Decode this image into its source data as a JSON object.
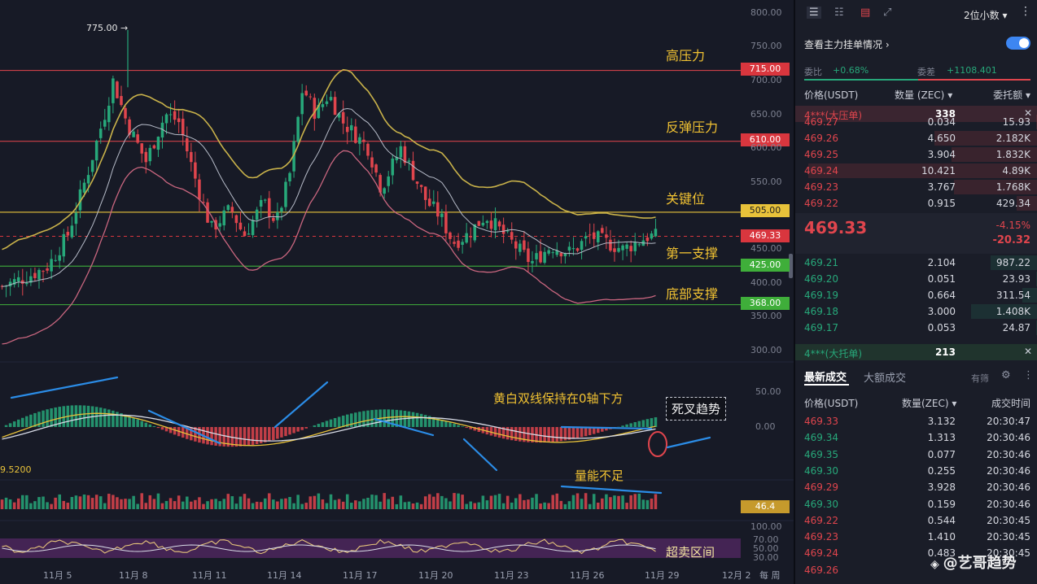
{
  "chart_data": {
    "type": "candlestick",
    "y_axis_ticks": [
      "800.00",
      "750.00",
      "700.00",
      "650.00",
      "600.00",
      "550.00",
      "450.00",
      "400.00",
      "350.00",
      "300.00"
    ],
    "y_range": [
      300,
      810
    ],
    "x_axis_ticks": [
      "11月 5",
      "11月 8",
      "11月 11",
      "11月 14",
      "11月 17",
      "11月 20",
      "11月 23",
      "11月 26",
      "11月 29",
      "12月 2"
    ],
    "x_axis_extra": "每 周",
    "high_marker": "775.00",
    "price_lines": [
      {
        "label": "高压力",
        "value": 715,
        "tag": "715.00",
        "color": "#e0454d"
      },
      {
        "label": "反弹压力",
        "value": 610,
        "tag": "610.00",
        "color": "#e0454d"
      },
      {
        "label": "关键位",
        "value": 505,
        "tag": "505.00",
        "color": "#e8c23a"
      },
      {
        "label": "第一支撑",
        "value": 425,
        "tag": "425.00",
        "color": "#3fae3a"
      },
      {
        "label": "底部支撑",
        "value": 368,
        "tag": "368.00",
        "color": "#3fae3a"
      }
    ],
    "current_price_tag": "469.33",
    "close_path": [
      [
        0,
        395
      ],
      [
        4,
        410
      ],
      [
        7,
        425
      ],
      [
        10,
        470
      ],
      [
        13,
        560
      ],
      [
        16,
        660
      ],
      [
        17,
        700
      ],
      [
        19,
        640
      ],
      [
        22,
        580
      ],
      [
        25,
        650
      ],
      [
        27,
        640
      ],
      [
        30,
        540
      ],
      [
        32,
        480
      ],
      [
        35,
        510
      ],
      [
        37,
        470
      ],
      [
        40,
        520
      ],
      [
        42,
        490
      ],
      [
        44,
        560
      ],
      [
        46,
        690
      ],
      [
        48,
        650
      ],
      [
        50,
        680
      ],
      [
        52,
        640
      ],
      [
        54,
        620
      ],
      [
        56,
        600
      ],
      [
        58,
        540
      ],
      [
        61,
        600
      ],
      [
        63,
        560
      ],
      [
        65,
        520
      ],
      [
        67,
        500
      ],
      [
        69,
        460
      ],
      [
        71,
        470
      ],
      [
        74,
        500
      ],
      [
        76,
        480
      ],
      [
        79,
        450
      ],
      [
        81,
        430
      ],
      [
        84,
        455
      ],
      [
        87,
        445
      ],
      [
        90,
        470
      ],
      [
        92,
        462
      ],
      [
        95,
        450
      ],
      [
        99,
        470
      ],
      [
        100,
        469
      ]
    ],
    "macd_annotation": "黄白双线保持在0轴下方",
    "macd_signal": "死叉趋势",
    "macd_axis": [
      "50.00",
      "0.00"
    ],
    "macd_left_value": "9.5200",
    "volume_annotation": "量能不足",
    "volume_tag": "46.4",
    "rsi_annotation": "超卖区间",
    "rsi_axis": [
      "100.00",
      "70.00",
      "50.00",
      "30.00"
    ]
  },
  "colors": {
    "up": "#27a87a",
    "down": "#e0454d",
    "boll_upper": "#c9b24a",
    "boll_mid": "#b7bcc9",
    "boll_lower": "#c9667f",
    "macd_fast": "#e8c23a",
    "macd_slow": "#d8dbe6"
  },
  "panel": {
    "toolbar": {
      "icons": [
        "list-icon",
        "list-alt-icon",
        "ask-only-icon",
        "expand-icon"
      ],
      "precision": "2位小数"
    },
    "main_orders_link": "查看主力挂单情况",
    "ratio_label": "委比",
    "ratio_value": "+0.68%",
    "diff_label": "委差",
    "diff_value": "+1108.401",
    "headers": {
      "price": "价格(USDT)",
      "qty": "数量 (ZEC)",
      "total": "委托额"
    },
    "big_ask": {
      "label": "4***(大压单)",
      "qty": "338"
    },
    "asks": [
      {
        "price": "469.27",
        "qty": "0.034",
        "total": "15.93"
      },
      {
        "price": "469.26",
        "qty": "4.650",
        "total": "2.182K"
      },
      {
        "price": "469.25",
        "qty": "3.904",
        "total": "1.832K"
      },
      {
        "price": "469.24",
        "qty": "10.421",
        "total": "4.89K"
      },
      {
        "price": "469.23",
        "qty": "3.767",
        "total": "1.768K"
      },
      {
        "price": "469.22",
        "qty": "0.915",
        "total": "429.34"
      }
    ],
    "last_price": "469.33",
    "change_pct": "-4.15%",
    "change_abs": "-20.32",
    "bids": [
      {
        "price": "469.21",
        "qty": "2.104",
        "total": "987.22"
      },
      {
        "price": "469.20",
        "qty": "0.051",
        "total": "23.93"
      },
      {
        "price": "469.19",
        "qty": "0.664",
        "total": "311.54"
      },
      {
        "price": "469.18",
        "qty": "3.000",
        "total": "1.408K"
      },
      {
        "price": "469.17",
        "qty": "0.053",
        "total": "24.87"
      }
    ],
    "big_bid": {
      "label": "4***(大托单)",
      "qty": "213"
    },
    "trades_tab_latest": "最新成交",
    "trades_tab_big": "大额成交",
    "trades_filter": "有筛",
    "trade_headers": {
      "price": "价格(USDT)",
      "qty": "数量(ZEC)",
      "time": "成交时间"
    },
    "trades": [
      {
        "price": "469.33",
        "qty": "3.132",
        "time": "20:30:47",
        "side": "sell"
      },
      {
        "price": "469.34",
        "qty": "1.313",
        "time": "20:30:46",
        "side": "buy"
      },
      {
        "price": "469.35",
        "qty": "0.077",
        "time": "20:30:46",
        "side": "buy"
      },
      {
        "price": "469.30",
        "qty": "0.255",
        "time": "20:30:46",
        "side": "buy"
      },
      {
        "price": "469.29",
        "qty": "3.928",
        "time": "20:30:46",
        "side": "sell"
      },
      {
        "price": "469.30",
        "qty": "0.159",
        "time": "20:30:46",
        "side": "buy"
      },
      {
        "price": "469.22",
        "qty": "0.544",
        "time": "20:30:45",
        "side": "sell"
      },
      {
        "price": "469.23",
        "qty": "1.410",
        "time": "20:30:45",
        "side": "sell"
      },
      {
        "price": "469.24",
        "qty": "0.483",
        "time": "20:30:45",
        "side": "sell"
      },
      {
        "price": "469.26",
        "qty": "",
        "time": "",
        "side": "sell"
      }
    ],
    "watermark": "@艺哥趋势"
  }
}
